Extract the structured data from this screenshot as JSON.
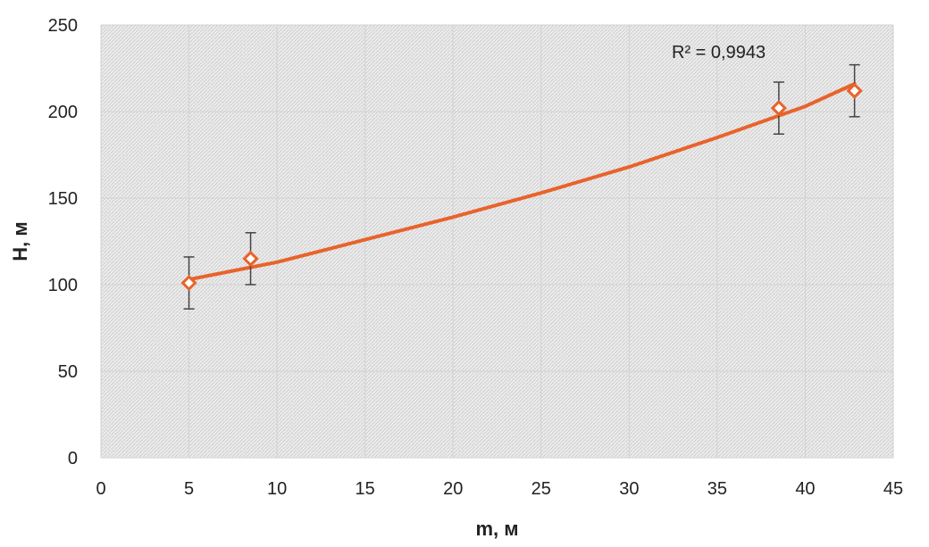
{
  "chart_data": {
    "type": "scatter",
    "xlabel": "m, м",
    "ylabel": "H, м",
    "xlim": [
      0,
      45
    ],
    "ylim": [
      0,
      250
    ],
    "xticks": [
      0,
      5,
      10,
      15,
      20,
      25,
      30,
      35,
      40,
      45
    ],
    "yticks": [
      0,
      50,
      100,
      150,
      200,
      250
    ],
    "grid": true,
    "series": [
      {
        "x": [
          5,
          8.5,
          38.5,
          42.8
        ],
        "y": [
          101,
          115,
          202,
          212
        ],
        "error_y": [
          15,
          15,
          15,
          15
        ],
        "marker": "diamond-open",
        "color": "#e8632b"
      }
    ],
    "trendline": {
      "x": [
        5,
        10,
        15,
        20,
        25,
        30,
        35,
        40,
        42.8
      ],
      "y": [
        103,
        113,
        126,
        139,
        153,
        168,
        185,
        203,
        216
      ],
      "color": "#e8632b"
    },
    "annotations": [
      {
        "text": "R² = 0,9943"
      }
    ]
  }
}
